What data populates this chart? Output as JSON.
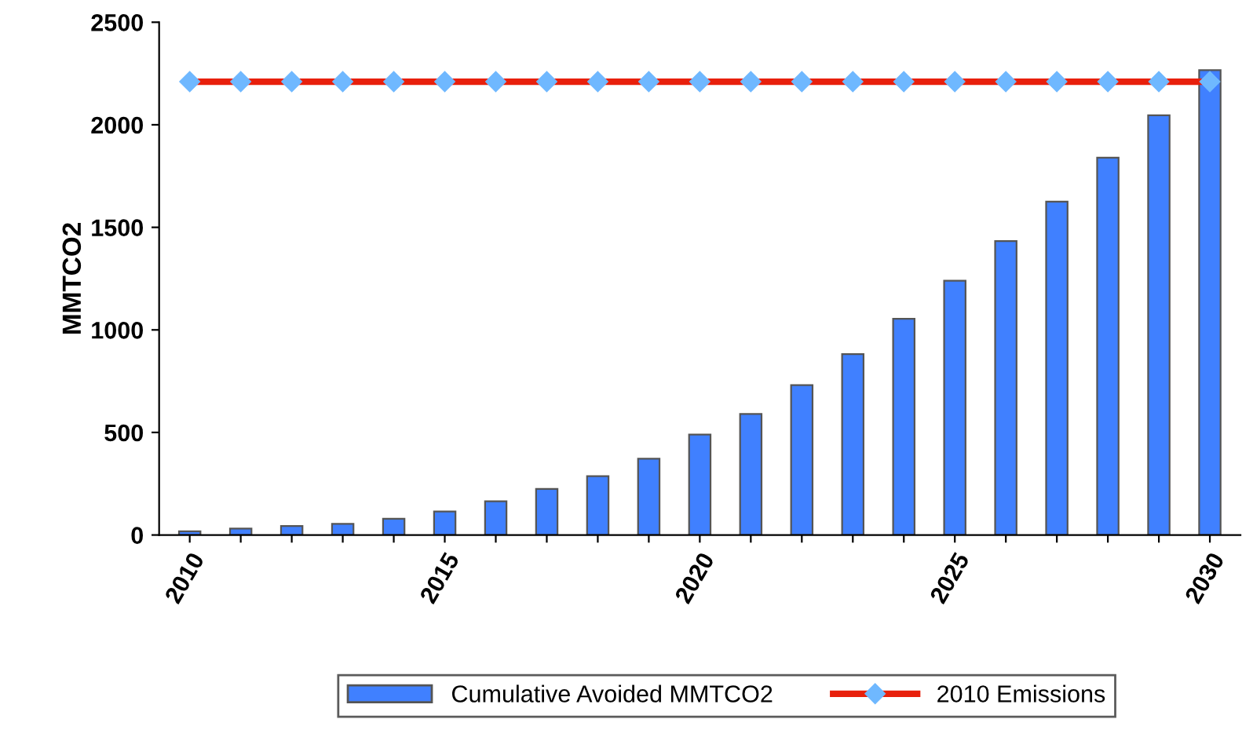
{
  "chart_data": {
    "type": "bar",
    "ylabel": "MMTCO2",
    "categories": [
      "2010",
      null,
      null,
      null,
      null,
      "2015",
      null,
      null,
      null,
      null,
      "2020",
      null,
      null,
      null,
      null,
      "2025",
      null,
      null,
      null,
      null,
      "2030"
    ],
    "series": [
      {
        "name": "Cumulative Avoided MMTCO2",
        "color": "#4080ff",
        "values": [
          18,
          31,
          44,
          54,
          79,
          115,
          164,
          225,
          287,
          372,
          490,
          590,
          731,
          882,
          1054,
          1240,
          1433,
          1625,
          1840,
          2046,
          2266
        ]
      },
      {
        "name": "2010 Emissions",
        "type": "line",
        "color": "#e8200c",
        "marker": "diamond",
        "values": [
          2210,
          2210,
          2210,
          2210,
          2210,
          2210,
          2210,
          2210,
          2210,
          2210,
          2210,
          2210,
          2210,
          2210,
          2210,
          2210,
          2210,
          2210,
          2210,
          2210,
          2210
        ]
      }
    ],
    "ylim": [
      0,
      2500
    ],
    "yticks": [
      0,
      500,
      1000,
      1500,
      2000,
      2500
    ],
    "grid": false,
    "legend": "bottom"
  }
}
